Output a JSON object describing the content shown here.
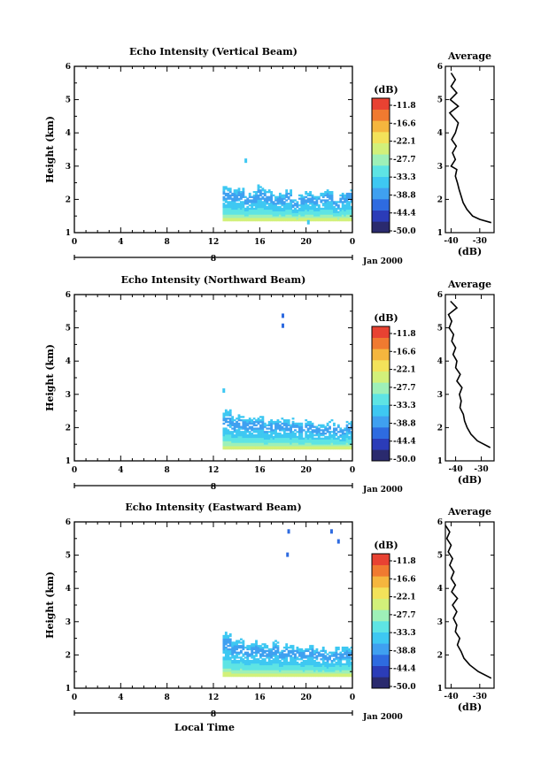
{
  "panels": [
    {
      "title": "Echo Intensity (Vertical Beam)",
      "average_title": "Average",
      "average_xticks": [
        "-40",
        "-30"
      ],
      "chart_data": {
        "type": "heatmap",
        "title": "Echo Intensity (Vertical Beam)",
        "xlabel": "",
        "ylabel": "Height (km)",
        "xlim": [
          0,
          24
        ],
        "ylim": [
          1,
          6
        ],
        "xticks": [
          "0",
          "4",
          "8",
          "12",
          "16",
          "20",
          "0"
        ],
        "yticks": [
          "1",
          "2",
          "3",
          "4",
          "5",
          "6"
        ],
        "data_start_hour": 12.8,
        "layer_top_km": [
          2.4,
          2.3,
          2.35,
          2.2,
          2.25,
          2.4,
          2.3,
          2.1,
          2.2,
          2.3,
          2.0,
          2.15,
          2.25,
          2.1,
          2.2,
          2.3,
          2.0,
          2.2,
          2.3
        ],
        "outliers": [
          {
            "hour": 14.8,
            "km": 3.15
          },
          {
            "hour": 20.2,
            "km": 1.3
          }
        ],
        "average_profile": {
          "xlim": [
            -42,
            -25
          ],
          "xlabel": "(dB)",
          "km": [
            1.3,
            1.4,
            1.5,
            1.7,
            1.9,
            2.1,
            2.3,
            2.5,
            2.7,
            2.9,
            3.0,
            3.2,
            3.4,
            3.6,
            3.8,
            4.0,
            4.3,
            4.6,
            4.8,
            5.0,
            5.2,
            5.4,
            5.6,
            5.8
          ],
          "db": [
            -26,
            -30,
            -32.5,
            -34.5,
            -35.8,
            -36.5,
            -37.2,
            -37.8,
            -38.5,
            -38,
            -40,
            -38.5,
            -39.5,
            -38.2,
            -39.8,
            -38.5,
            -37.5,
            -40.5,
            -37.5,
            -40.3,
            -38,
            -40,
            -38.5,
            -40
          ]
        }
      }
    },
    {
      "title": "Echo Intensity (Northward Beam)",
      "average_title": "Average",
      "average_xticks": [
        "-40",
        "-30"
      ],
      "chart_data": {
        "type": "heatmap",
        "title": "Echo Intensity (Northward Beam)",
        "xlabel": "",
        "ylabel": "Height (km)",
        "xlim": [
          0,
          24
        ],
        "ylim": [
          1,
          6
        ],
        "xticks": [
          "0",
          "4",
          "8",
          "12",
          "16",
          "20",
          "0"
        ],
        "yticks": [
          "1",
          "2",
          "3",
          "4",
          "5",
          "6"
        ],
        "data_start_hour": 12.8,
        "layer_top_km": [
          2.5,
          2.3,
          2.35,
          2.3,
          2.25,
          2.3,
          2.2,
          2.25,
          2.3,
          2.2,
          2.25,
          2.1,
          2.2,
          2.1,
          2.1,
          2.2,
          2.1,
          2.0,
          2.2
        ],
        "outliers": [
          {
            "hour": 18.0,
            "km": 5.35
          },
          {
            "hour": 18.0,
            "km": 5.05
          },
          {
            "hour": 12.9,
            "km": 3.1
          }
        ],
        "average_profile": {
          "xlim": [
            -44,
            -25
          ],
          "xlabel": "(dB)",
          "km": [
            1.4,
            1.6,
            1.8,
            2.0,
            2.2,
            2.4,
            2.6,
            2.8,
            3.0,
            3.2,
            3.4,
            3.6,
            3.8,
            4.0,
            4.2,
            4.4,
            4.6,
            4.8,
            5.0,
            5.2,
            5.4,
            5.6,
            5.8
          ],
          "db": [
            -26.5,
            -31.5,
            -34,
            -35.5,
            -36.5,
            -37,
            -38.3,
            -37.8,
            -38.5,
            -37.5,
            -39.5,
            -38.2,
            -40,
            -39.5,
            -41,
            -40,
            -41.5,
            -40.8,
            -42.5,
            -41.5,
            -42.8,
            -39.5,
            -42
          ]
        }
      }
    },
    {
      "title": "Echo Intensity (Eastward Beam)",
      "average_title": "Average",
      "average_xticks": [
        "-40",
        "-30"
      ],
      "chart_data": {
        "type": "heatmap",
        "title": "Echo Intensity (Eastward Beam)",
        "xlabel": "Local Time",
        "ylabel": "Height (km)",
        "xlim": [
          0,
          24
        ],
        "ylim": [
          1,
          6
        ],
        "xticks": [
          "0",
          "4",
          "8",
          "12",
          "16",
          "20",
          "0"
        ],
        "yticks": [
          "1",
          "2",
          "3",
          "4",
          "5",
          "6"
        ],
        "data_start_hour": 12.8,
        "layer_top_km": [
          2.7,
          2.4,
          2.45,
          2.3,
          2.4,
          2.35,
          2.3,
          2.4,
          2.2,
          2.3,
          2.25,
          2.2,
          2.3,
          2.2,
          2.2,
          2.1,
          2.2,
          2.2,
          2.2
        ],
        "outliers": [
          {
            "hour": 18.5,
            "km": 5.7
          },
          {
            "hour": 18.4,
            "km": 5.0
          },
          {
            "hour": 22.2,
            "km": 5.7
          },
          {
            "hour": 22.8,
            "km": 5.4
          }
        ],
        "average_profile": {
          "xlim": [
            -42,
            -25
          ],
          "xlabel": "(dB)",
          "km": [
            1.3,
            1.5,
            1.7,
            1.9,
            2.1,
            2.3,
            2.5,
            2.7,
            2.9,
            3.1,
            3.3,
            3.5,
            3.7,
            3.9,
            4.1,
            4.3,
            4.5,
            4.7,
            4.9,
            5.1,
            5.3,
            5.5,
            5.7,
            5.9
          ],
          "db": [
            -26,
            -30.5,
            -33.5,
            -35.5,
            -36.5,
            -37.8,
            -37,
            -38.5,
            -38,
            -39.2,
            -38,
            -39.5,
            -37.8,
            -39.8,
            -38.5,
            -40,
            -39,
            -40.5,
            -39.5,
            -41,
            -40,
            -41.5,
            -40.5,
            -42
          ]
        }
      }
    }
  ],
  "colorbar": {
    "unit": "(dB)",
    "labels": [
      "-11.8",
      "-16.6",
      "-22.1",
      "-27.7",
      "-33.3",
      "-38.8",
      "-44.4",
      "-50.0"
    ],
    "colors": [
      "#2a2a6e",
      "#2b3cb8",
      "#2e6be0",
      "#3fa0f0",
      "#3ec8f2",
      "#5ee4e4",
      "#9ef0b8",
      "#d2f07a",
      "#f3e25a",
      "#f5b63e",
      "#f07a30",
      "#e84232"
    ]
  },
  "date": {
    "day_label": "8",
    "month_label": "Jan 2000"
  },
  "xlabel_bottom": "Local Time"
}
